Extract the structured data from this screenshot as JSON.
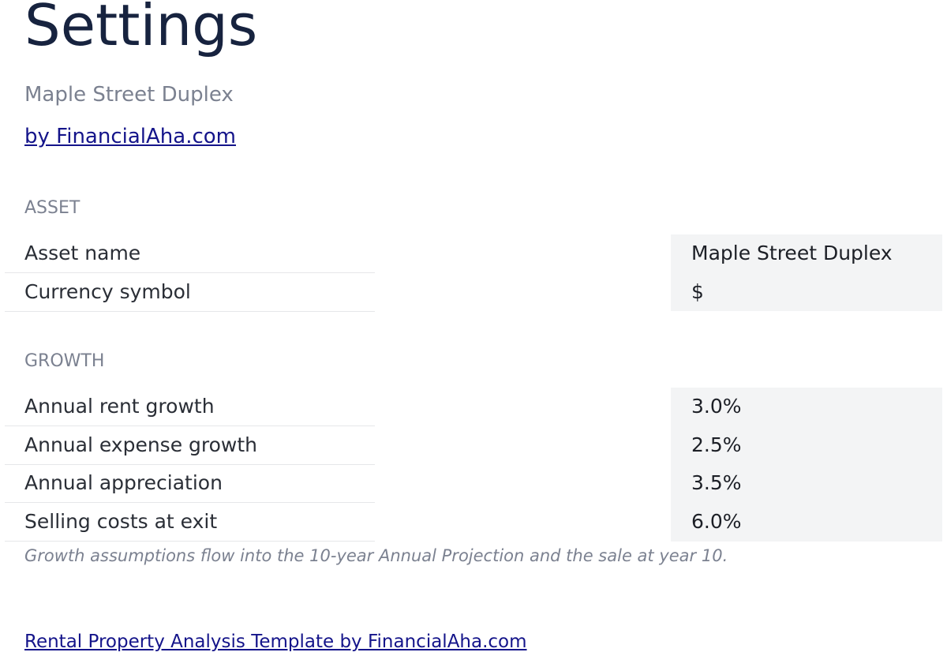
{
  "header": {
    "title": "Settings",
    "subtitle": "Maple Street Duplex",
    "link": "by FinancialAha.com"
  },
  "sections": [
    {
      "heading": "ASSET",
      "rows": [
        [
          "Asset name",
          "Maple Street Duplex"
        ],
        [
          "Currency symbol",
          "$"
        ]
      ]
    },
    {
      "heading": "GROWTH",
      "rows": [
        [
          "Annual rent growth",
          "3.0%"
        ],
        [
          "Annual expense growth",
          "2.5%"
        ],
        [
          "Annual appreciation",
          "3.5%"
        ],
        [
          "Selling costs at exit",
          "6.0%"
        ]
      ],
      "note": "Growth assumptions flow into the 10-year Annual Projection and the sale at year 10."
    }
  ],
  "footer": {
    "link": "Rental Property Analysis Template by FinancialAha.com"
  }
}
